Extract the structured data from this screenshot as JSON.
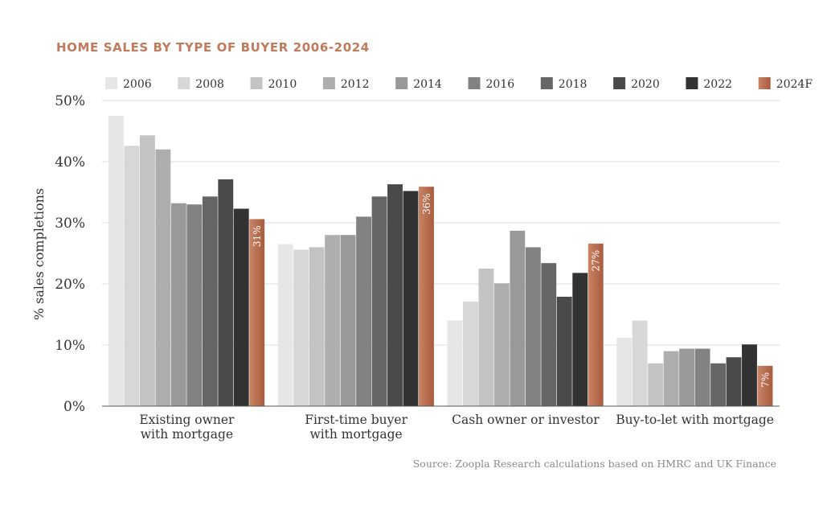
{
  "chart_data": {
    "type": "bar",
    "title": "HOME SALES BY TYPE OF BUYER 2006-2024",
    "ylabel": "% sales completions",
    "ylim": [
      0,
      50
    ],
    "yticks": [
      "0%",
      "10%",
      "20%",
      "30%",
      "40%",
      "50%"
    ],
    "grid": true,
    "legend_position": "top",
    "categories": [
      [
        "Existing owner",
        "with mortgage"
      ],
      [
        "First-time buyer",
        "with mortgage"
      ],
      [
        "Cash owner or investor"
      ],
      [
        "Buy-to-let with mortgage"
      ]
    ],
    "series": [
      {
        "name": "2006",
        "color": "#e6e6e6",
        "values": [
          47.5,
          26.5,
          14.0,
          11.2
        ]
      },
      {
        "name": "2008",
        "color": "#d7d7d7",
        "values": [
          42.6,
          25.6,
          17.1,
          14.0
        ]
      },
      {
        "name": "2010",
        "color": "#c3c3c3",
        "values": [
          44.3,
          26.0,
          22.5,
          7.0
        ]
      },
      {
        "name": "2012",
        "color": "#aeaeae",
        "values": [
          42.0,
          28.0,
          20.1,
          9.0
        ]
      },
      {
        "name": "2014",
        "color": "#999999",
        "values": [
          33.2,
          28.0,
          28.7,
          9.4
        ]
      },
      {
        "name": "2016",
        "color": "#828282",
        "values": [
          33.0,
          31.0,
          26.0,
          9.4
        ]
      },
      {
        "name": "2018",
        "color": "#666666",
        "values": [
          34.3,
          34.3,
          23.4,
          7.0
        ]
      },
      {
        "name": "2020",
        "color": "#4a4a4a",
        "values": [
          37.1,
          36.3,
          17.9,
          8.0
        ]
      },
      {
        "name": "2022",
        "color": "#323232",
        "values": [
          32.3,
          35.2,
          21.8,
          10.1
        ]
      },
      {
        "name": "2024F",
        "color": "#1e1e1e",
        "values": [
          30.6,
          35.9,
          26.6,
          6.6
        ]
      }
    ],
    "forecast_color": "#b8694a",
    "data_labels": [
      "31%",
      "36%",
      "27%",
      "7%"
    ],
    "source": "Source: Zoopla Research calculations based on HMRC and UK Finance"
  }
}
